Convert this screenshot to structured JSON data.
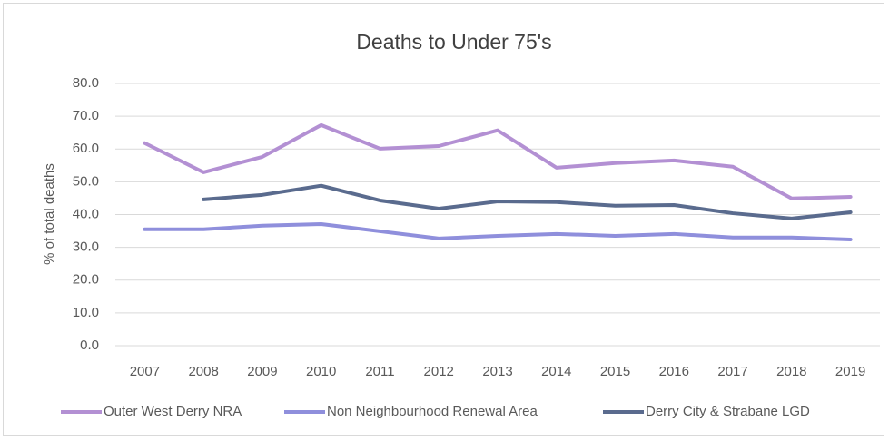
{
  "chart_data": {
    "type": "line",
    "title": "Deaths to Under 75's",
    "y_label": "% of total deaths",
    "categories": [
      "2007",
      "2008",
      "2009",
      "2010",
      "2011",
      "2012",
      "2013",
      "2014",
      "2015",
      "2016",
      "2017",
      "2018",
      "2019"
    ],
    "series": [
      {
        "name": "Outer West Derry NRA",
        "color": "#b390d3",
        "values": [
          61.8,
          52.9,
          57.6,
          67.3,
          60.1,
          60.9,
          65.7,
          54.3,
          55.7,
          56.5,
          54.6,
          44.9,
          45.4
        ]
      },
      {
        "name": "Non Neighbourhood Renewal Area",
        "color": "#8f8fdc",
        "values": [
          35.5,
          35.5,
          36.6,
          37.1,
          34.9,
          32.7,
          33.5,
          34.1,
          33.5,
          34.1,
          33.0,
          33.0,
          32.4
        ]
      },
      {
        "name": "Derry City & Strabane LGD",
        "color": "#5a6b8e",
        "values": [
          null,
          44.6,
          46.0,
          48.8,
          44.3,
          41.8,
          44.0,
          43.8,
          42.7,
          42.9,
          40.4,
          38.8,
          40.7
        ]
      }
    ],
    "ylim": [
      0,
      80
    ],
    "yticks": [
      {
        "value": 0,
        "label": "0.0"
      },
      {
        "value": 10,
        "label": "10.0"
      },
      {
        "value": 20,
        "label": "20.0"
      },
      {
        "value": 30,
        "label": "30.0"
      },
      {
        "value": 40,
        "label": "40.0"
      },
      {
        "value": 50,
        "label": "50.0"
      },
      {
        "value": 60,
        "label": "60.0"
      },
      {
        "value": 70,
        "label": "70.0"
      },
      {
        "value": 80,
        "label": "80.0"
      }
    ],
    "grid": true,
    "legend": "bottom"
  }
}
